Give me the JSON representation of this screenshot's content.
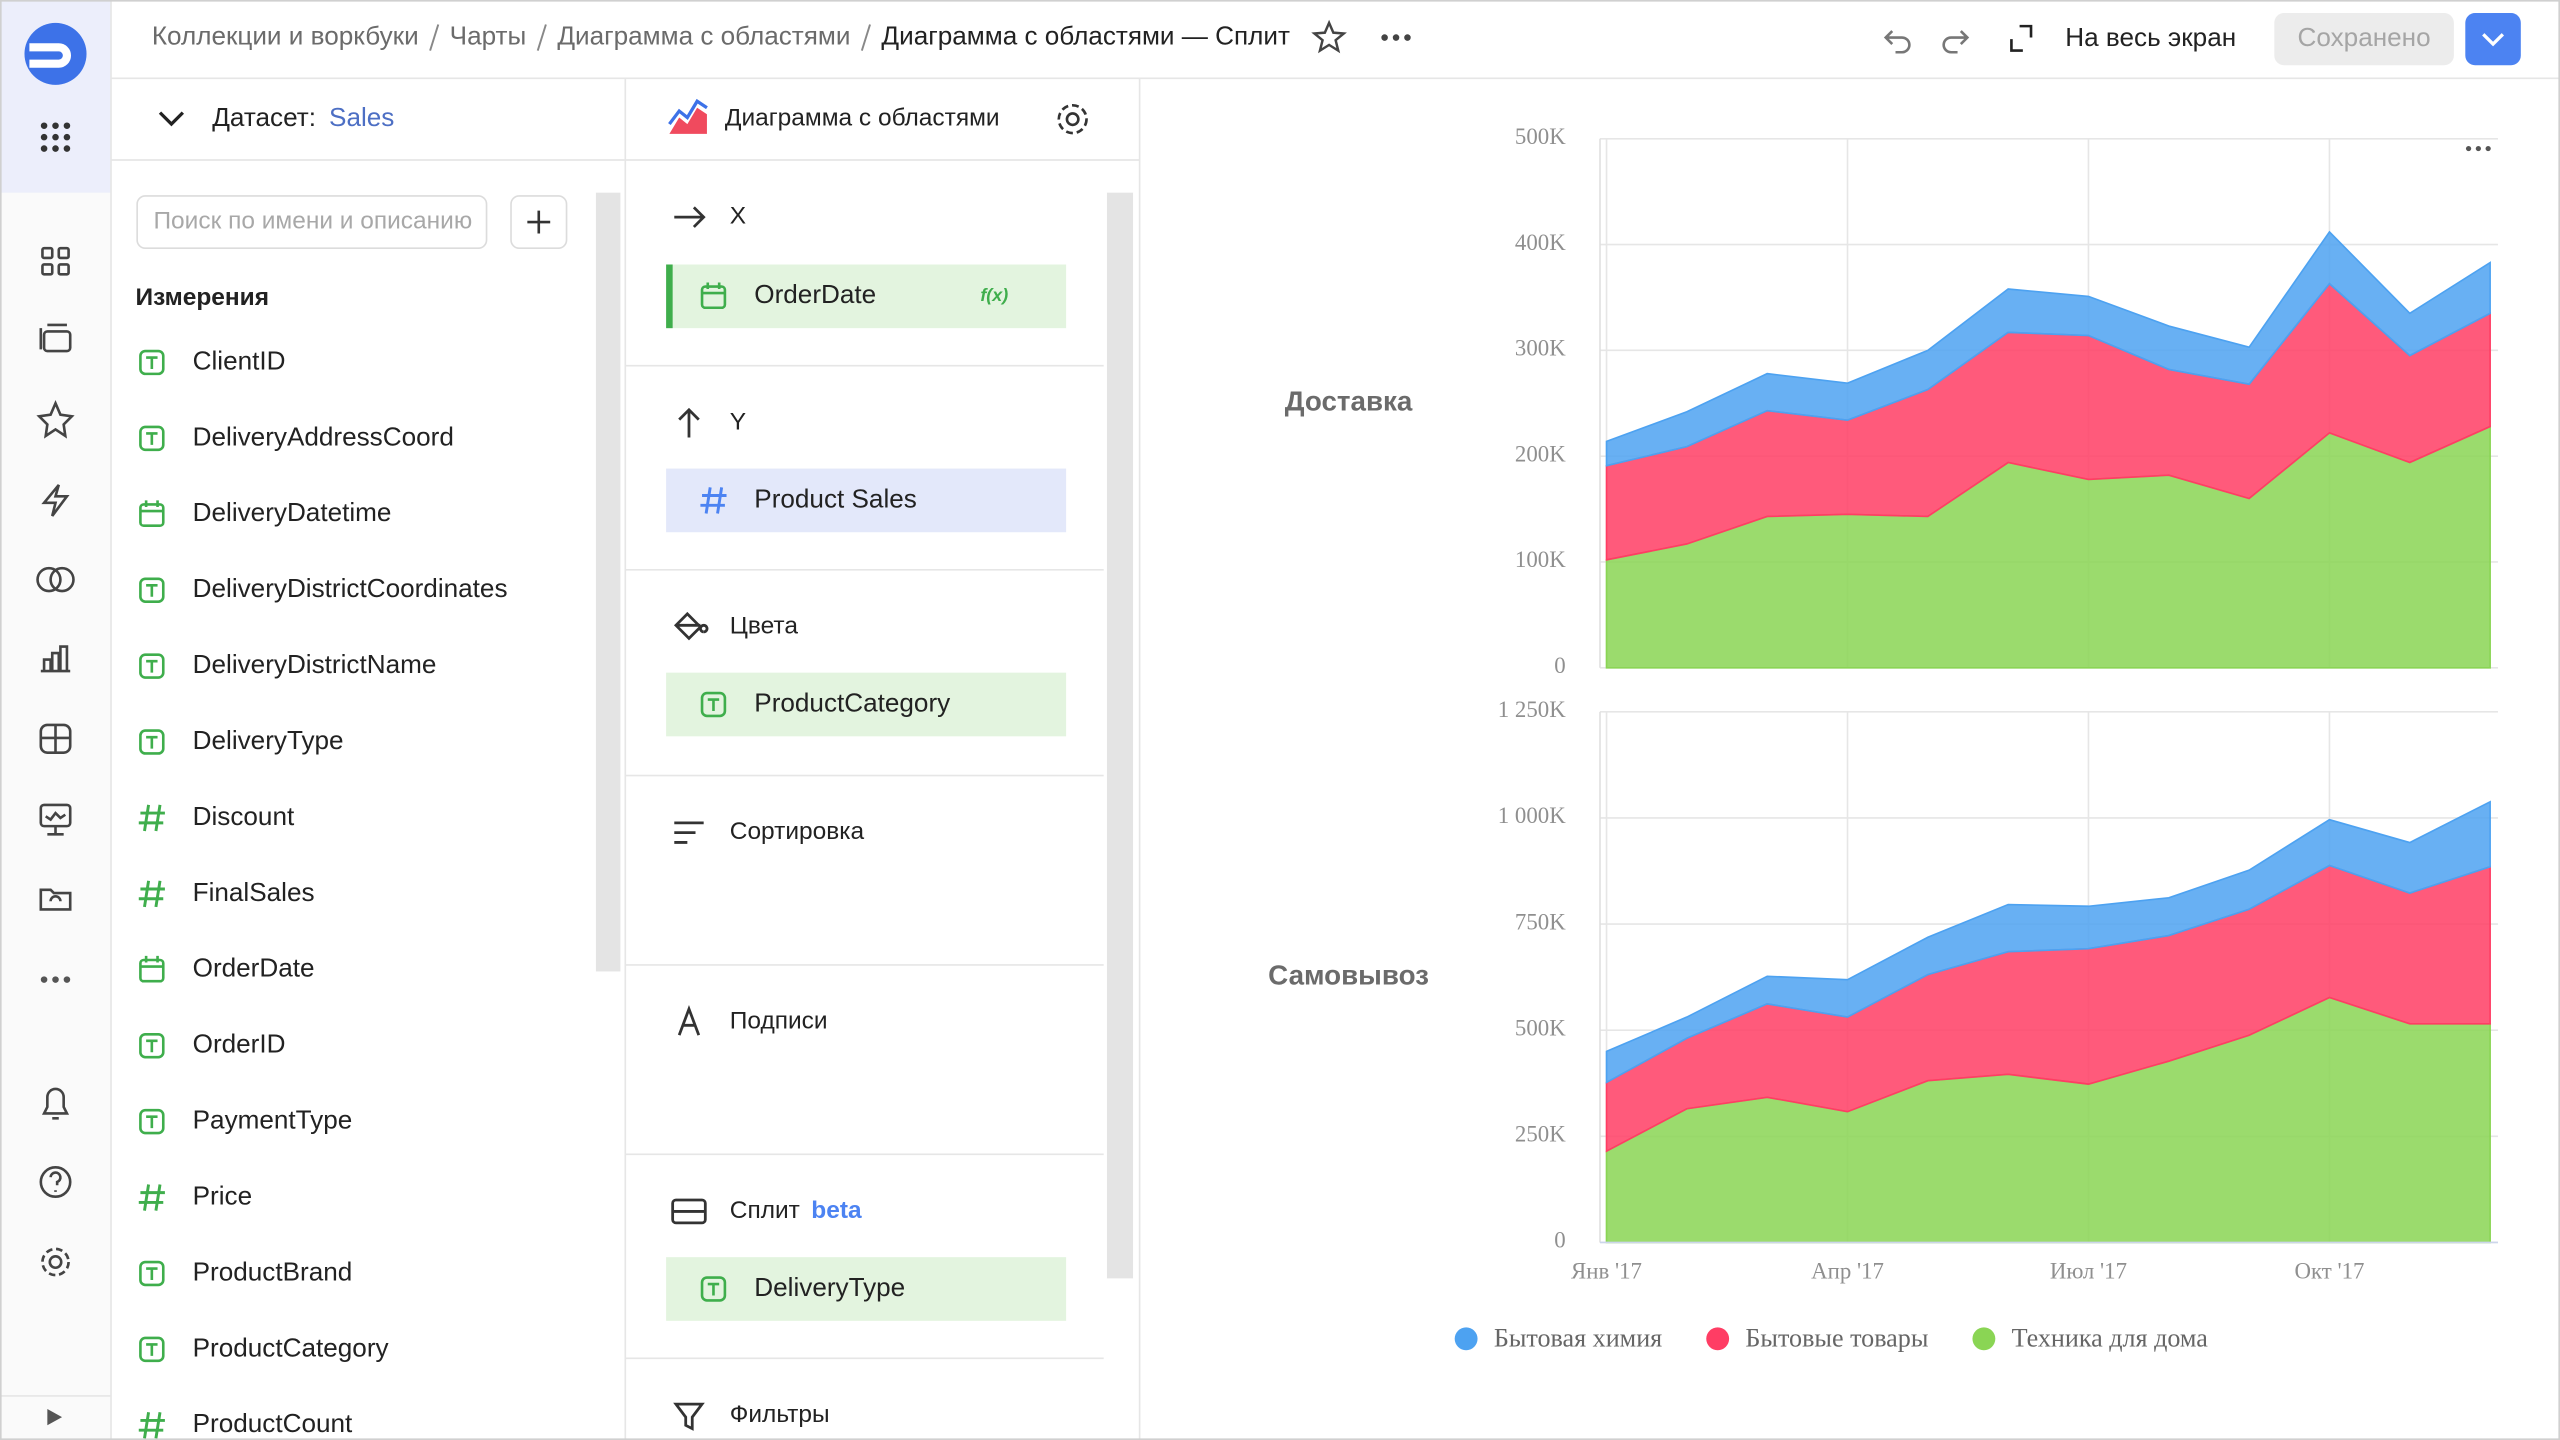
{
  "header": {
    "breadcrumbs": [
      "Коллекции и воркбуки",
      "Чарты",
      "Диаграмма с областями"
    ],
    "title": "Диаграмма с областями — Сплит",
    "fullscreen": "На весь экран",
    "save": "Сохранено"
  },
  "dataset": {
    "label": "Датасет:",
    "name": "Sales",
    "search_placeholder": "Поиск по имени и описанию",
    "section": "Измерения",
    "fields": [
      {
        "name": "ClientID",
        "kind": "text"
      },
      {
        "name": "DeliveryAddressCoord",
        "kind": "text"
      },
      {
        "name": "DeliveryDatetime",
        "kind": "date"
      },
      {
        "name": "DeliveryDistrictCoordinates",
        "kind": "text"
      },
      {
        "name": "DeliveryDistrictName",
        "kind": "text"
      },
      {
        "name": "DeliveryType",
        "kind": "text"
      },
      {
        "name": "Discount",
        "kind": "number"
      },
      {
        "name": "FinalSales",
        "kind": "number"
      },
      {
        "name": "OrderDate",
        "kind": "date"
      },
      {
        "name": "OrderID",
        "kind": "text"
      },
      {
        "name": "PaymentType",
        "kind": "text"
      },
      {
        "name": "Price",
        "kind": "number"
      },
      {
        "name": "ProductBrand",
        "kind": "text"
      },
      {
        "name": "ProductCategory",
        "kind": "text"
      },
      {
        "name": "ProductCount",
        "kind": "number"
      }
    ]
  },
  "visualization": {
    "name": "Диаграмма с областями",
    "sections": [
      {
        "title": "X",
        "icon": "x",
        "field": {
          "name": "OrderDate",
          "kind": "date",
          "formula": "f(x)"
        }
      },
      {
        "title": "Y",
        "icon": "y",
        "field": {
          "name": "Product Sales",
          "kind": "number"
        }
      },
      {
        "title": "Цвета",
        "icon": "colors",
        "field": {
          "name": "ProductCategory",
          "kind": "text"
        }
      },
      {
        "title": "Сортировка",
        "icon": "sort"
      },
      {
        "title": "Подписи",
        "icon": "labels"
      },
      {
        "title": "Сплит",
        "badge": "beta",
        "icon": "split",
        "field": {
          "name": "DeliveryType",
          "kind": "text"
        }
      },
      {
        "title": "Фильтры",
        "icon": "filters"
      }
    ]
  },
  "chart_data": [
    {
      "type": "area",
      "stacked": true,
      "title": "Доставка",
      "ylim": [
        0,
        500000
      ],
      "yticks": [
        0,
        {
          "value": 100000,
          "label": "100K"
        },
        {
          "value": 200000,
          "label": "200K"
        },
        {
          "value": 300000,
          "label": "300K"
        },
        {
          "value": 400000,
          "label": "400K"
        },
        {
          "value": 500000,
          "label": "500K"
        }
      ],
      "grid": true,
      "series": [
        {
          "color": "#4da2f1",
          "values": [
            23000,
            33000,
            35000,
            35000,
            37000,
            41000,
            37000,
            41000,
            35000,
            49000,
            40000,
            48000
          ]
        },
        {
          "color": "#ff3d64",
          "values": [
            89000,
            92000,
            100000,
            89000,
            120000,
            123000,
            136000,
            100000,
            108000,
            141000,
            101000,
            107000
          ]
        },
        {
          "color": "#8ad554",
          "values": [
            102000,
            117000,
            143000,
            145000,
            143000,
            194000,
            178000,
            182000,
            160000,
            222000,
            194000,
            228000
          ]
        }
      ]
    },
    {
      "type": "area",
      "stacked": true,
      "title": "Самовывоз",
      "categories": [
        "Янв '17",
        null,
        null,
        "Апр '17",
        null,
        null,
        "Июл '17",
        null,
        null,
        "Окт '17",
        null,
        null
      ],
      "ylim": [
        0,
        1250000
      ],
      "yticks": [
        0,
        {
          "value": 250000,
          "label": "250K"
        },
        {
          "value": 500000,
          "label": "500K"
        },
        {
          "value": 750000,
          "label": "750K"
        },
        {
          "value": 1000000,
          "label": "1 000K"
        },
        {
          "value": 1250000,
          "label": "1 250K"
        }
      ],
      "grid": true,
      "legend": "bottom",
      "series": [
        {
          "name": "Бытовая химия",
          "color": "#4da2f1",
          "values": [
            73000,
            50000,
            65000,
            88000,
            88000,
            111000,
            100000,
            89000,
            92000,
            108000,
            119000,
            153000
          ]
        },
        {
          "name": "Бытовые товары",
          "color": "#ff3d64",
          "values": [
            162000,
            166000,
            220000,
            223000,
            250000,
            289000,
            319000,
            296000,
            297000,
            311000,
            308000,
            370000
          ]
        },
        {
          "name": "Техника для дома",
          "color": "#8ad554",
          "values": [
            215000,
            315000,
            342000,
            308000,
            381000,
            396000,
            373000,
            427000,
            488000,
            577000,
            515000,
            515000
          ]
        }
      ]
    }
  ]
}
